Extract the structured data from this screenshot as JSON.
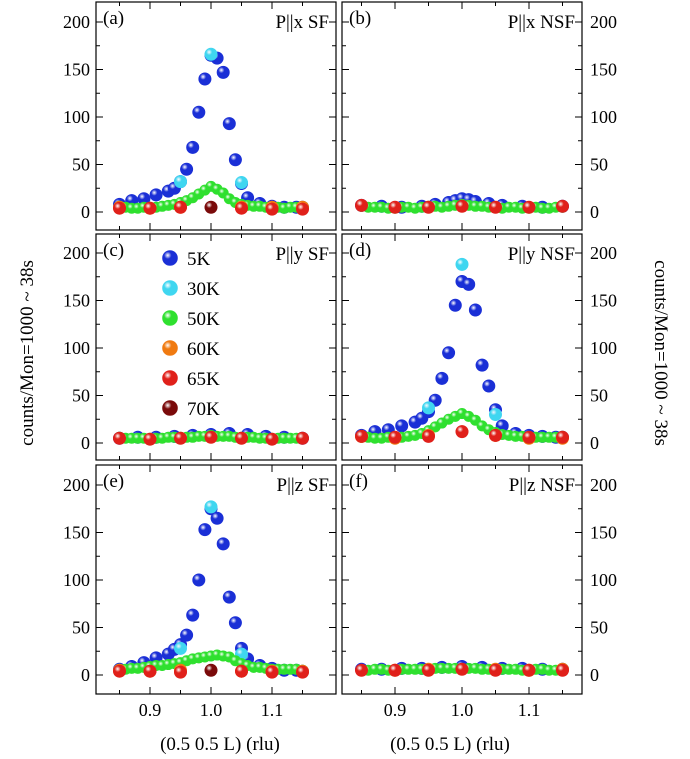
{
  "chart_data": {
    "type": "scatter",
    "ylabel_left": "counts/Mon=1000 ~ 38s",
    "ylabel_right": "counts/Mon=1000 ~ 38s",
    "xlabel": "(0.5 0.5 L) (rlu)",
    "xlim": [
      0.84,
      1.16
    ],
    "ylim": [
      -15,
      220
    ],
    "x_ticks": [
      "0.9",
      "1.0",
      "1.1"
    ],
    "y_ticks": [
      "0",
      "50",
      "100",
      "150",
      "200"
    ],
    "legend": {
      "placement": "panel (c)",
      "entries": [
        {
          "label": "5K",
          "color": "#1a2fd6"
        },
        {
          "label": "30K",
          "color": "#3fd6f0"
        },
        {
          "label": "50K",
          "color": "#2fe02f"
        },
        {
          "label": "60K",
          "color": "#f07a10"
        },
        {
          "label": "65K",
          "color": "#e0201a"
        },
        {
          "label": "70K",
          "color": "#7a0a0a"
        }
      ]
    },
    "panels": [
      {
        "id": "a",
        "tag": "(a)",
        "title": "P||x SF",
        "series": [
          {
            "name": "5K",
            "x": [
              0.85,
              0.87,
              0.89,
              0.91,
              0.93,
              0.94,
              0.95,
              0.96,
              0.97,
              0.98,
              0.99,
              1.0,
              1.01,
              1.02,
              1.03,
              1.04,
              1.05,
              1.06,
              1.08,
              1.1,
              1.12,
              1.14,
              1.15
            ],
            "y": [
              8,
              12,
              14,
              18,
              22,
              25,
              32,
              45,
              68,
              105,
              140,
              165,
              162,
              147,
              93,
              55,
              30,
              15,
              9,
              6,
              5,
              5,
              5
            ]
          },
          {
            "name": "30K",
            "x": [
              0.95,
              1.0,
              1.05
            ],
            "y": [
              32,
              166,
              31
            ]
          },
          {
            "name": "50K",
            "x": [
              0.85,
              0.86,
              0.87,
              0.88,
              0.89,
              0.9,
              0.91,
              0.92,
              0.93,
              0.94,
              0.95,
              0.96,
              0.97,
              0.98,
              0.99,
              1.0,
              1.01,
              1.02,
              1.03,
              1.04,
              1.05,
              1.06,
              1.07,
              1.08,
              1.09,
              1.1,
              1.11,
              1.12,
              1.13,
              1.14,
              1.15
            ],
            "y": [
              6,
              5,
              4,
              4,
              5,
              5,
              5,
              6,
              7,
              8,
              10,
              12,
              15,
              19,
              23,
              27,
              24,
              20,
              14,
              10,
              8,
              7,
              6,
              6,
              5,
              5,
              5,
              4,
              5,
              5,
              5
            ]
          },
          {
            "name": "60K",
            "x": [
              0.85,
              0.9,
              0.95,
              1.05,
              1.1,
              1.15
            ],
            "y": [
              5,
              4,
              5,
              5,
              5,
              5
            ]
          },
          {
            "name": "65K",
            "x": [
              0.85,
              0.9,
              0.95,
              1.05,
              1.1,
              1.15
            ],
            "y": [
              4,
              4,
              5,
              4,
              3,
              3
            ]
          },
          {
            "name": "70K",
            "x": [
              1.0
            ],
            "y": [
              5
            ]
          }
        ]
      },
      {
        "id": "b",
        "tag": "(b)",
        "title": "P||x NSF",
        "series": [
          {
            "name": "5K",
            "x": [
              0.85,
              0.88,
              0.91,
              0.94,
              0.96,
              0.98,
              0.99,
              1.0,
              1.01,
              1.02,
              1.04,
              1.06,
              1.09,
              1.12,
              1.15
            ],
            "y": [
              7,
              6,
              5,
              6,
              8,
              10,
              12,
              14,
              13,
              11,
              9,
              7,
              6,
              5,
              6
            ]
          },
          {
            "name": "50K",
            "x": [
              0.85,
              0.86,
              0.87,
              0.88,
              0.89,
              0.9,
              0.91,
              0.92,
              0.93,
              0.94,
              0.95,
              0.96,
              0.97,
              0.98,
              0.99,
              1.0,
              1.01,
              1.02,
              1.03,
              1.04,
              1.05,
              1.06,
              1.07,
              1.08,
              1.09,
              1.1,
              1.11,
              1.12,
              1.13,
              1.14,
              1.15
            ],
            "y": [
              6,
              5,
              5,
              5,
              4,
              4,
              5,
              5,
              4,
              5,
              6,
              6,
              5,
              6,
              7,
              8,
              7,
              6,
              6,
              5,
              5,
              4,
              5,
              5,
              4,
              4,
              5,
              4,
              4,
              5,
              5
            ]
          },
          {
            "name": "65K",
            "x": [
              0.85,
              0.9,
              0.95,
              1.0,
              1.05,
              1.1,
              1.15
            ],
            "y": [
              7,
              5,
              5,
              6,
              5,
              5,
              6
            ]
          }
        ]
      },
      {
        "id": "c",
        "tag": "(c)",
        "title": "P||y SF",
        "series": [
          {
            "name": "5K",
            "x": [
              0.85,
              0.88,
              0.91,
              0.94,
              0.97,
              1.0,
              1.03,
              1.06,
              1.09,
              1.12,
              1.15
            ],
            "y": [
              5,
              6,
              6,
              7,
              8,
              9,
              10,
              9,
              7,
              6,
              5
            ]
          },
          {
            "name": "50K",
            "x": [
              0.85,
              0.86,
              0.87,
              0.88,
              0.89,
              0.9,
              0.91,
              0.92,
              0.93,
              0.94,
              0.95,
              0.96,
              0.97,
              0.98,
              0.99,
              1.0,
              1.01,
              1.02,
              1.03,
              1.04,
              1.05,
              1.06,
              1.07,
              1.08,
              1.09,
              1.1,
              1.11,
              1.12,
              1.13,
              1.14,
              1.15
            ],
            "y": [
              6,
              5,
              5,
              5,
              5,
              5,
              5,
              5,
              6,
              6,
              6,
              6,
              6,
              7,
              7,
              8,
              7,
              7,
              7,
              6,
              6,
              6,
              6,
              5,
              5,
              5,
              5,
              5,
              5,
              5,
              5
            ]
          },
          {
            "name": "65K",
            "x": [
              0.85,
              0.9,
              0.95,
              1.0,
              1.05,
              1.1,
              1.15
            ],
            "y": [
              5,
              4,
              5,
              6,
              5,
              4,
              5
            ]
          }
        ]
      },
      {
        "id": "d",
        "tag": "(d)",
        "title": "P||y NSF",
        "series": [
          {
            "name": "5K",
            "x": [
              0.85,
              0.87,
              0.89,
              0.91,
              0.93,
              0.94,
              0.95,
              0.96,
              0.97,
              0.98,
              0.99,
              1.0,
              1.01,
              1.02,
              1.03,
              1.04,
              1.05,
              1.06,
              1.08,
              1.1,
              1.12,
              1.14,
              1.15
            ],
            "y": [
              8,
              12,
              14,
              18,
              22,
              26,
              33,
              45,
              68,
              95,
              145,
              170,
              167,
              140,
              82,
              60,
              35,
              18,
              10,
              8,
              7,
              6,
              6
            ]
          },
          {
            "name": "30K",
            "x": [
              0.95,
              1.0,
              1.05
            ],
            "y": [
              37,
              188,
              30
            ]
          },
          {
            "name": "50K",
            "x": [
              0.85,
              0.86,
              0.87,
              0.88,
              0.89,
              0.9,
              0.91,
              0.92,
              0.93,
              0.94,
              0.95,
              0.96,
              0.97,
              0.98,
              0.99,
              1.0,
              1.01,
              1.02,
              1.03,
              1.04,
              1.05,
              1.06,
              1.07,
              1.08,
              1.09,
              1.1,
              1.11,
              1.12,
              1.13,
              1.14,
              1.15
            ],
            "y": [
              6,
              6,
              5,
              5,
              6,
              6,
              6,
              7,
              8,
              10,
              13,
              17,
              21,
              25,
              28,
              31,
              28,
              24,
              18,
              14,
              11,
              9,
              8,
              7,
              7,
              6,
              6,
              6,
              6,
              6,
              7
            ]
          },
          {
            "name": "60K",
            "x": [
              0.85,
              0.9,
              0.95,
              1.05,
              1.1,
              1.15
            ],
            "y": [
              7,
              5,
              8,
              8,
              5,
              5
            ]
          },
          {
            "name": "65K",
            "x": [
              0.85,
              0.9,
              0.95,
              1.0,
              1.05,
              1.1,
              1.15
            ],
            "y": [
              7,
              6,
              7,
              12,
              8,
              6,
              6
            ]
          }
        ]
      },
      {
        "id": "e",
        "tag": "(e)",
        "title": "P||z SF",
        "series": [
          {
            "name": "5K",
            "x": [
              0.85,
              0.87,
              0.89,
              0.91,
              0.93,
              0.94,
              0.95,
              0.96,
              0.97,
              0.98,
              0.99,
              1.0,
              1.01,
              1.02,
              1.03,
              1.04,
              1.05,
              1.06,
              1.08,
              1.1,
              1.12,
              1.14,
              1.15
            ],
            "y": [
              6,
              9,
              13,
              18,
              22,
              27,
              32,
              42,
              63,
              100,
              153,
              175,
              165,
              138,
              82,
              55,
              28,
              17,
              10,
              7,
              5,
              5,
              4
            ]
          },
          {
            "name": "30K",
            "x": [
              0.95,
              1.0,
              1.05
            ],
            "y": [
              28,
              177,
              22
            ]
          },
          {
            "name": "50K",
            "x": [
              0.85,
              0.86,
              0.87,
              0.88,
              0.89,
              0.9,
              0.91,
              0.92,
              0.93,
              0.94,
              0.95,
              0.96,
              0.97,
              0.98,
              0.99,
              1.0,
              1.01,
              1.02,
              1.03,
              1.04,
              1.05,
              1.06,
              1.07,
              1.08,
              1.09,
              1.1,
              1.11,
              1.12,
              1.13,
              1.14,
              1.15
            ],
            "y": [
              6,
              6,
              7,
              7,
              8,
              9,
              10,
              10,
              11,
              12,
              13,
              15,
              17,
              18,
              19,
              20,
              21,
              20,
              19,
              15,
              12,
              10,
              8,
              8,
              7,
              6,
              6,
              6,
              6,
              6,
              5
            ]
          },
          {
            "name": "60K",
            "x": [
              0.85,
              0.9,
              0.95,
              1.05,
              1.1,
              1.15
            ],
            "y": [
              5,
              4,
              5,
              4,
              4,
              4
            ]
          },
          {
            "name": "65K",
            "x": [
              0.85,
              0.9,
              0.95,
              1.05,
              1.1,
              1.15
            ],
            "y": [
              4,
              4,
              3,
              4,
              3,
              3
            ]
          },
          {
            "name": "70K",
            "x": [
              1.0
            ],
            "y": [
              5
            ]
          }
        ]
      },
      {
        "id": "f",
        "tag": "(f)",
        "title": "P||z NSF",
        "series": [
          {
            "name": "5K",
            "x": [
              0.85,
              0.88,
              0.91,
              0.94,
              0.97,
              1.0,
              1.03,
              1.06,
              1.09,
              1.12,
              1.15
            ],
            "y": [
              6,
              6,
              7,
              7,
              8,
              9,
              8,
              7,
              7,
              6,
              6
            ]
          },
          {
            "name": "50K",
            "x": [
              0.85,
              0.86,
              0.87,
              0.88,
              0.89,
              0.9,
              0.91,
              0.92,
              0.93,
              0.94,
              0.95,
              0.96,
              0.97,
              0.98,
              0.99,
              1.0,
              1.01,
              1.02,
              1.03,
              1.04,
              1.05,
              1.06,
              1.07,
              1.08,
              1.09,
              1.1,
              1.11,
              1.12,
              1.13,
              1.14,
              1.15
            ],
            "y": [
              5,
              5,
              6,
              6,
              5,
              5,
              6,
              6,
              6,
              6,
              6,
              7,
              7,
              7,
              7,
              7,
              7,
              7,
              6,
              6,
              6,
              6,
              6,
              6,
              5,
              5,
              6,
              6,
              5,
              5,
              5
            ]
          },
          {
            "name": "60K",
            "x": [
              0.9,
              0.95,
              1.05,
              1.1,
              1.15
            ],
            "y": [
              5,
              6,
              6,
              5,
              6
            ]
          },
          {
            "name": "65K",
            "x": [
              0.85,
              0.9,
              0.95,
              1.0,
              1.05,
              1.1,
              1.15
            ],
            "y": [
              5,
              5,
              5,
              6,
              5,
              5,
              5
            ]
          }
        ]
      }
    ]
  }
}
